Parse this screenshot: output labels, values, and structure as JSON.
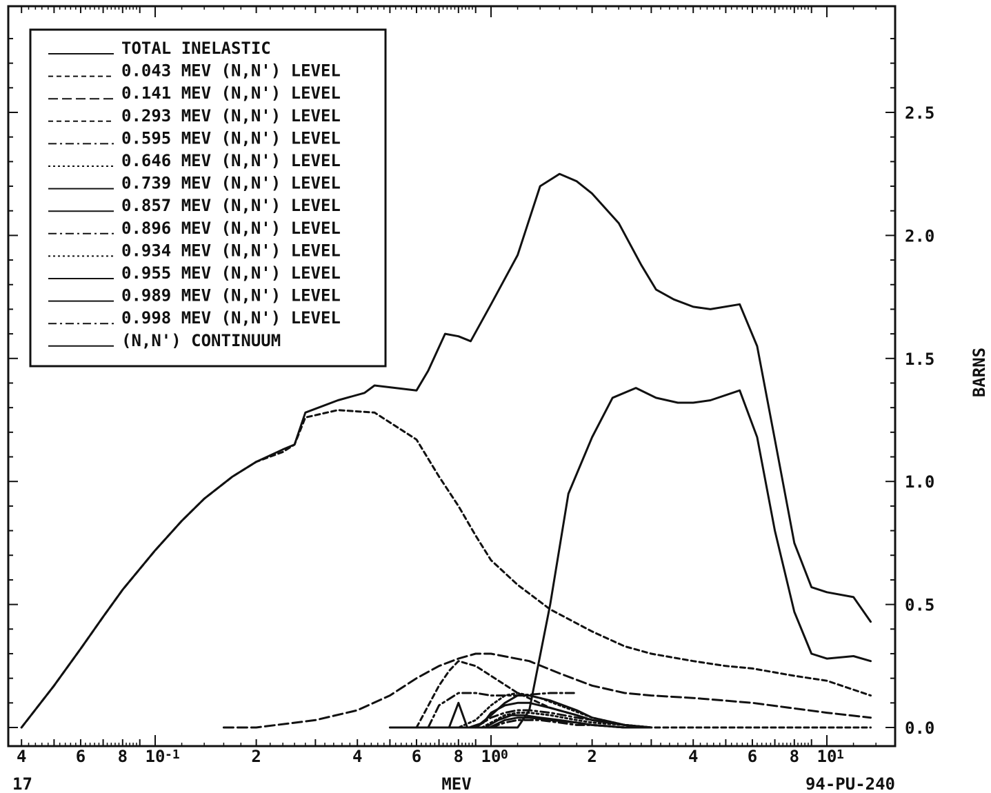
{
  "chart_data": {
    "type": "line",
    "xscale": "log",
    "xlabel": "MEV",
    "ylabel": "BARNS",
    "ylim": [
      0,
      3.0
    ],
    "yticks": [
      "0.0",
      "0.5",
      "1.0",
      "1.5",
      "2.0",
      "2.5"
    ],
    "xtick_labels": [
      "4",
      "6",
      "8",
      "10",
      "-1",
      "2",
      "4",
      "6",
      "8",
      "10",
      "0",
      "2",
      "4",
      "6",
      "8",
      "10",
      "1"
    ],
    "footer_left": "17",
    "footer_right": "94-PU-240",
    "legend_placement": "top-left",
    "series": [
      {
        "name": "TOTAL INELASTIC",
        "dash": "solid",
        "x": [
          0.04,
          0.05,
          0.06,
          0.07,
          0.08,
          0.1,
          0.12,
          0.14,
          0.17,
          0.2,
          0.24,
          0.26,
          0.28,
          0.35,
          0.42,
          0.45,
          0.6,
          0.65,
          0.73,
          0.8,
          0.87,
          1.0,
          1.2,
          1.4,
          1.6,
          1.8,
          2.0,
          2.4,
          2.8,
          3.1,
          3.5,
          4.0,
          4.5,
          5.5,
          6.2,
          7.0,
          8.0,
          9.0,
          10.0,
          12.0,
          13.5
        ],
        "y": [
          0.0,
          0.17,
          0.32,
          0.45,
          0.56,
          0.72,
          0.84,
          0.93,
          1.02,
          1.08,
          1.13,
          1.15,
          1.28,
          1.33,
          1.36,
          1.39,
          1.37,
          1.45,
          1.6,
          1.59,
          1.57,
          1.72,
          1.92,
          2.2,
          2.25,
          2.22,
          2.17,
          2.05,
          1.88,
          1.78,
          1.74,
          1.71,
          1.7,
          1.72,
          1.55,
          1.17,
          0.75,
          0.57,
          0.55,
          0.53,
          0.43
        ]
      },
      {
        "name": "0.043 MEV (N,N') LEVEL",
        "dash": "dashed",
        "x": [
          0.04,
          0.05,
          0.06,
          0.07,
          0.08,
          0.1,
          0.12,
          0.14,
          0.17,
          0.2,
          0.24,
          0.26,
          0.28,
          0.35,
          0.45,
          0.6,
          0.7,
          0.8,
          0.9,
          1.0,
          1.2,
          1.5,
          2.0,
          2.5,
          3.0,
          4.0,
          5.0,
          6.0,
          8.0,
          10.0,
          13.5
        ],
        "y": [
          0.0,
          0.17,
          0.32,
          0.45,
          0.56,
          0.72,
          0.84,
          0.93,
          1.02,
          1.08,
          1.12,
          1.15,
          1.26,
          1.29,
          1.28,
          1.17,
          1.02,
          0.9,
          0.78,
          0.68,
          0.58,
          0.48,
          0.39,
          0.33,
          0.3,
          0.27,
          0.25,
          0.24,
          0.21,
          0.19,
          0.13
        ]
      },
      {
        "name": "0.141 MEV (N,N') LEVEL",
        "dash": "longdash",
        "x": [
          0.16,
          0.2,
          0.3,
          0.4,
          0.5,
          0.6,
          0.7,
          0.8,
          0.9,
          1.0,
          1.3,
          1.6,
          2.0,
          2.5,
          3.0,
          4.0,
          6.0,
          10.0,
          13.5
        ],
        "y": [
          0.0,
          0.0,
          0.03,
          0.07,
          0.13,
          0.2,
          0.25,
          0.28,
          0.3,
          0.3,
          0.27,
          0.22,
          0.17,
          0.14,
          0.13,
          0.12,
          0.1,
          0.06,
          0.04
        ]
      },
      {
        "name": "0.293 MEV (N,N') LEVEL",
        "dash": "dashed",
        "x": [
          0.6,
          0.7,
          0.75,
          0.8,
          0.9,
          1.0,
          1.2,
          1.5,
          1.8,
          2.0,
          2.5,
          3.0,
          4.0,
          6.0,
          10.0,
          13.5
        ],
        "y": [
          0.0,
          0.17,
          0.23,
          0.27,
          0.25,
          0.21,
          0.14,
          0.08,
          0.05,
          0.03,
          0.01,
          0.0,
          0.0,
          0.0,
          0.0,
          0.0
        ]
      },
      {
        "name": "0.595 MEV (N,N') LEVEL",
        "dash": "dashdot",
        "x": [
          0.65,
          0.7,
          0.8,
          0.9,
          1.0,
          1.2,
          1.5,
          1.8
        ],
        "y": [
          0.0,
          0.09,
          0.14,
          0.14,
          0.13,
          0.13,
          0.14,
          0.14
        ]
      },
      {
        "name": "0.646 MEV (N,N') LEVEL",
        "dash": "dotted",
        "x": [
          0.6,
          0.8,
          0.9,
          1.0,
          1.1,
          1.2,
          1.4,
          1.6,
          2.0,
          2.5,
          3.0
        ],
        "y": [
          0.0,
          0.0,
          0.03,
          0.09,
          0.13,
          0.14,
          0.12,
          0.09,
          0.04,
          0.01,
          0.0
        ]
      },
      {
        "name": "0.739 MEV (N,N') LEVEL",
        "dash": "solid",
        "x": [
          0.75,
          0.8,
          0.85,
          0.9,
          1.0,
          1.1,
          1.2,
          1.3,
          1.5,
          1.8,
          2.0,
          2.5,
          3.0
        ],
        "y": [
          0.0,
          0.1,
          0.0,
          0.0,
          0.05,
          0.1,
          0.13,
          0.13,
          0.11,
          0.07,
          0.04,
          0.01,
          0.0
        ]
      },
      {
        "name": "0.857 MEV (N,N') LEVEL",
        "dash": "solid",
        "x": [
          0.86,
          0.95,
          1.0,
          1.1,
          1.2,
          1.3,
          1.5,
          1.8,
          2.0,
          2.5,
          3.0
        ],
        "y": [
          0.0,
          0.02,
          0.06,
          0.09,
          0.1,
          0.1,
          0.08,
          0.05,
          0.03,
          0.01,
          0.0
        ]
      },
      {
        "name": "0.896 MEV (N,N') LEVEL",
        "dash": "dashdot",
        "x": [
          0.9,
          1.0,
          1.1,
          1.2,
          1.3,
          1.5,
          1.8,
          2.0,
          2.5,
          3.0
        ],
        "y": [
          0.0,
          0.04,
          0.06,
          0.07,
          0.07,
          0.06,
          0.04,
          0.03,
          0.01,
          0.0
        ]
      },
      {
        "name": "0.934 MEV (N,N') LEVEL",
        "dash": "dotted",
        "x": [
          0.94,
          1.0,
          1.1,
          1.2,
          1.3,
          1.5,
          1.8,
          2.0,
          2.5,
          3.0
        ],
        "y": [
          0.0,
          0.02,
          0.05,
          0.06,
          0.06,
          0.05,
          0.03,
          0.02,
          0.01,
          0.0
        ]
      },
      {
        "name": "0.955 MEV (N,N') LEVEL",
        "dash": "solid",
        "x": [
          0.96,
          1.05,
          1.15,
          1.25,
          1.4,
          1.6,
          1.8,
          2.0,
          2.5,
          3.0
        ],
        "y": [
          0.0,
          0.03,
          0.05,
          0.05,
          0.04,
          0.03,
          0.02,
          0.01,
          0.0,
          0.0
        ]
      },
      {
        "name": "0.989 MEV (N,N') LEVEL",
        "dash": "solid",
        "x": [
          0.99,
          1.1,
          1.2,
          1.3,
          1.5,
          1.8,
          2.0,
          2.5,
          3.0
        ],
        "y": [
          0.0,
          0.03,
          0.04,
          0.04,
          0.03,
          0.02,
          0.01,
          0.0,
          0.0
        ]
      },
      {
        "name": "0.998 MEV (N,N') LEVEL",
        "dash": "dashdot",
        "x": [
          1.0,
          1.1,
          1.2,
          1.4,
          1.6,
          1.8,
          2.0,
          2.5,
          3.0
        ],
        "y": [
          0.0,
          0.02,
          0.03,
          0.03,
          0.02,
          0.01,
          0.01,
          0.0,
          0.0
        ]
      },
      {
        "name": "(N,N') CONTINUUM",
        "dash": "solid",
        "x": [
          0.5,
          0.6,
          0.8,
          1.0,
          1.2,
          1.3,
          1.5,
          1.7,
          2.0,
          2.3,
          2.7,
          3.1,
          3.6,
          4.0,
          4.5,
          5.5,
          6.2,
          7.0,
          8.0,
          9.0,
          10.0,
          12.0,
          13.5
        ],
        "y": [
          0.0,
          0.0,
          0.0,
          0.0,
          0.0,
          0.07,
          0.5,
          0.95,
          1.18,
          1.34,
          1.38,
          1.34,
          1.32,
          1.32,
          1.33,
          1.37,
          1.18,
          0.8,
          0.47,
          0.3,
          0.28,
          0.29,
          0.27
        ]
      }
    ]
  }
}
